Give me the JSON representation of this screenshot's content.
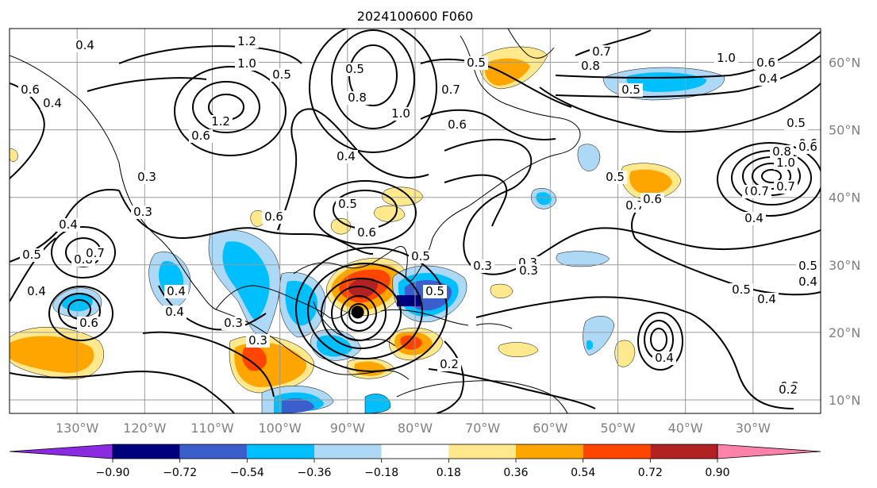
{
  "figure": {
    "title": "2024100600 F060"
  },
  "map": {
    "lon_range": [
      -140,
      -20
    ],
    "lat_range": [
      8,
      65
    ],
    "lon_ticks": [
      {
        "value": -130,
        "label": "130°W"
      },
      {
        "value": -120,
        "label": "120°W"
      },
      {
        "value": -110,
        "label": "110°W"
      },
      {
        "value": -100,
        "label": "100°W"
      },
      {
        "value": -90,
        "label": "90°W"
      },
      {
        "value": -80,
        "label": "80°W"
      },
      {
        "value": -70,
        "label": "70°W"
      },
      {
        "value": -60,
        "label": "60°W"
      },
      {
        "value": -50,
        "label": "50°W"
      },
      {
        "value": -40,
        "label": "40°W"
      },
      {
        "value": -30,
        "label": "30°W"
      }
    ],
    "lat_ticks": [
      {
        "value": 60,
        "label": "60°N"
      },
      {
        "value": 50,
        "label": "50°N"
      },
      {
        "value": 40,
        "label": "40°N"
      },
      {
        "value": 30,
        "label": "30°N"
      },
      {
        "value": 20,
        "label": "20°N"
      },
      {
        "value": 10,
        "label": "10°N"
      }
    ],
    "gridlines": true,
    "storm_marker": {
      "lon": -88.5,
      "lat": 23.0
    },
    "colors": {
      "land_edge": "#000000",
      "grid": "#9a9a9a",
      "contour": "#000000",
      "background": "#ffffff"
    }
  },
  "colorbar": {
    "orientation": "horizontal",
    "extend": "both",
    "levels": [
      -0.9,
      -0.72,
      -0.54,
      -0.36,
      -0.18,
      0.18,
      0.36,
      0.54,
      0.72,
      0.9
    ],
    "tick_labels": [
      "−0.90",
      "−0.72",
      "−0.54",
      "−0.36",
      "−0.18",
      "0.18",
      "0.36",
      "0.54",
      "0.72",
      "0.90"
    ],
    "colors": [
      "#8a2be2",
      "#00007f",
      "#3a5fcd",
      "#00bfff",
      "#add8f6",
      "#ffffff",
      "#ffe98c",
      "#ffa500",
      "#ff4500",
      "#b22222",
      "#ff82ab"
    ]
  },
  "contour_labels": [
    "0.4",
    "1.2",
    "1.0",
    "0.6",
    "0.4",
    "1.2",
    "0.6",
    "0.5",
    "0.8",
    "1.0",
    "0.7",
    "0.6",
    "0.5",
    "0.8",
    "0.7",
    "0.5",
    "1.0",
    "0.6",
    "0.4",
    "0.5",
    "0.8",
    "0.6",
    "0.5",
    "0.7",
    "0.6",
    "0.8",
    "0.7",
    "1.0",
    "0.4",
    "0.3",
    "0.6",
    "0.5",
    "0.6",
    "0.4",
    "0.8",
    "0.7",
    "0.3",
    "0.5",
    "0.6",
    "0.4",
    "0.5",
    "0.3",
    "0.4",
    "0.5",
    "0.3",
    "0.3",
    "0.5",
    "0.4",
    "0.4",
    "0.3",
    "0.2",
    "0.4",
    "0.2",
    "0.2",
    "0.5",
    "0.4",
    "0.7",
    "0.6",
    "0.3",
    "0.5",
    "0.4",
    "0.2"
  ]
}
